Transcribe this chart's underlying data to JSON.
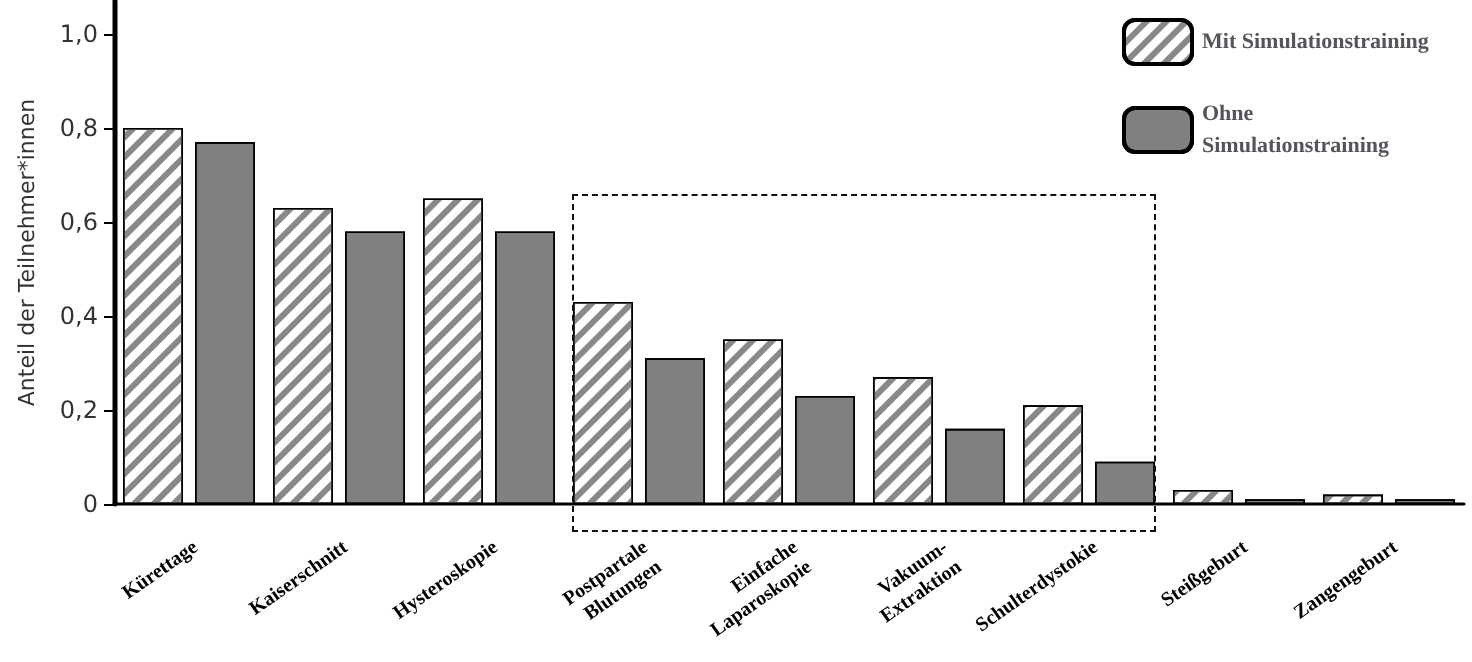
{
  "chart_data": {
    "type": "bar",
    "ylabel": "Anteil der Teilnehmer*innen",
    "categories": [
      "Kürettage",
      "Kaiserschnitt",
      "Hysteroskopie",
      "Postpartale Blutungen",
      "Einfache Laparoskopie",
      "Vakuum-Extraktion",
      "Schulterdystokie",
      "Steißgeburt",
      "Zangengeburt"
    ],
    "series": [
      {
        "name": "Mit Simulationstraining",
        "color": "#ffffff",
        "values": [
          0.8,
          0.63,
          0.65,
          0.43,
          0.35,
          0.27,
          0.21,
          0.03,
          0.02
        ]
      },
      {
        "name": "Ohne Simulationstraining",
        "color": "#808080",
        "values": [
          0.77,
          0.58,
          0.58,
          0.31,
          0.23,
          0.16,
          0.09,
          0.01,
          0.01
        ]
      }
    ],
    "ylim": [
      0,
      1.07
    ],
    "yticks": [
      0,
      {
        "value": 0.2,
        "label": "0,2"
      },
      {
        "value": 0.4,
        "label": "0,4"
      },
      {
        "value": 0.6,
        "label": "0,6"
      },
      {
        "value": 0.8,
        "label": "0,8"
      },
      {
        "value": 1.0,
        "label": "1,0"
      }
    ],
    "grid": false,
    "legend": "top right"
  }
}
